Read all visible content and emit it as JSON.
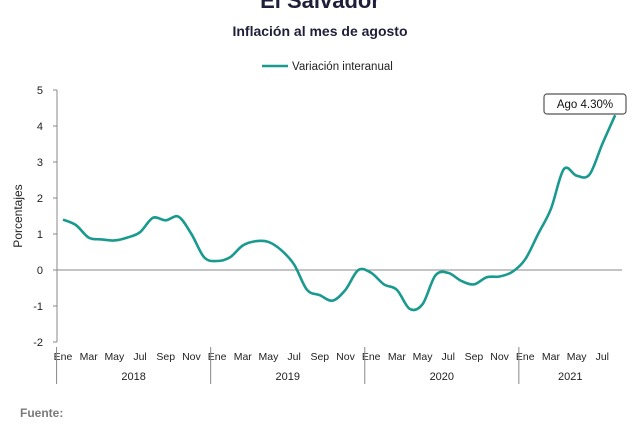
{
  "header": {
    "title": "El Salvador",
    "subtitle": "Inflación al mes de agosto"
  },
  "footer": {
    "source_label": "Fuente:"
  },
  "colors": {
    "series": "#1a9a8f",
    "axis": "#888888",
    "annotation_border": "#555555"
  },
  "chart_data": {
    "type": "line",
    "ylabel": "Porcentajes",
    "ylim": [
      -2,
      5
    ],
    "yticks": [
      -2,
      -1,
      0,
      1,
      2,
      3,
      4,
      5
    ],
    "legend": {
      "placement": "top-center"
    },
    "grid": false,
    "month_labels": [
      "Ene",
      "Mar",
      "May",
      "Jul",
      "Sep",
      "Nov",
      "Ene",
      "Mar",
      "May",
      "Jul",
      "Sep",
      "Nov",
      "Ene",
      "Mar",
      "May",
      "Jul",
      "Sep",
      "Nov",
      "Ene",
      "Mar",
      "May",
      "Jul"
    ],
    "year_labels": [
      "2018",
      "2019",
      "2020",
      "2021"
    ],
    "x": [
      "2018-01",
      "2018-02",
      "2018-03",
      "2018-04",
      "2018-05",
      "2018-06",
      "2018-07",
      "2018-08",
      "2018-09",
      "2018-10",
      "2018-11",
      "2018-12",
      "2019-01",
      "2019-02",
      "2019-03",
      "2019-04",
      "2019-05",
      "2019-06",
      "2019-07",
      "2019-08",
      "2019-09",
      "2019-10",
      "2019-11",
      "2019-12",
      "2020-01",
      "2020-02",
      "2020-03",
      "2020-04",
      "2020-05",
      "2020-06",
      "2020-07",
      "2020-08",
      "2020-09",
      "2020-10",
      "2020-11",
      "2020-12",
      "2021-01",
      "2021-02",
      "2021-03",
      "2021-04",
      "2021-05",
      "2021-06",
      "2021-07",
      "2021-08"
    ],
    "series": [
      {
        "name": "Variación interanual",
        "values": [
          1.4,
          1.25,
          0.9,
          0.85,
          0.82,
          0.9,
          1.05,
          1.45,
          1.38,
          1.48,
          1.0,
          0.35,
          0.25,
          0.35,
          0.68,
          0.8,
          0.78,
          0.55,
          0.15,
          -0.55,
          -0.7,
          -0.85,
          -0.55,
          0.0,
          -0.08,
          -0.4,
          -0.55,
          -1.08,
          -0.95,
          -0.15,
          -0.08,
          -0.3,
          -0.4,
          -0.2,
          -0.18,
          -0.05,
          0.3,
          1.0,
          1.7,
          2.8,
          2.62,
          2.65,
          3.5,
          4.3
        ]
      }
    ],
    "annotation": {
      "label": "Ago 4.30%",
      "x": "2021-08",
      "y": 4.3
    }
  }
}
